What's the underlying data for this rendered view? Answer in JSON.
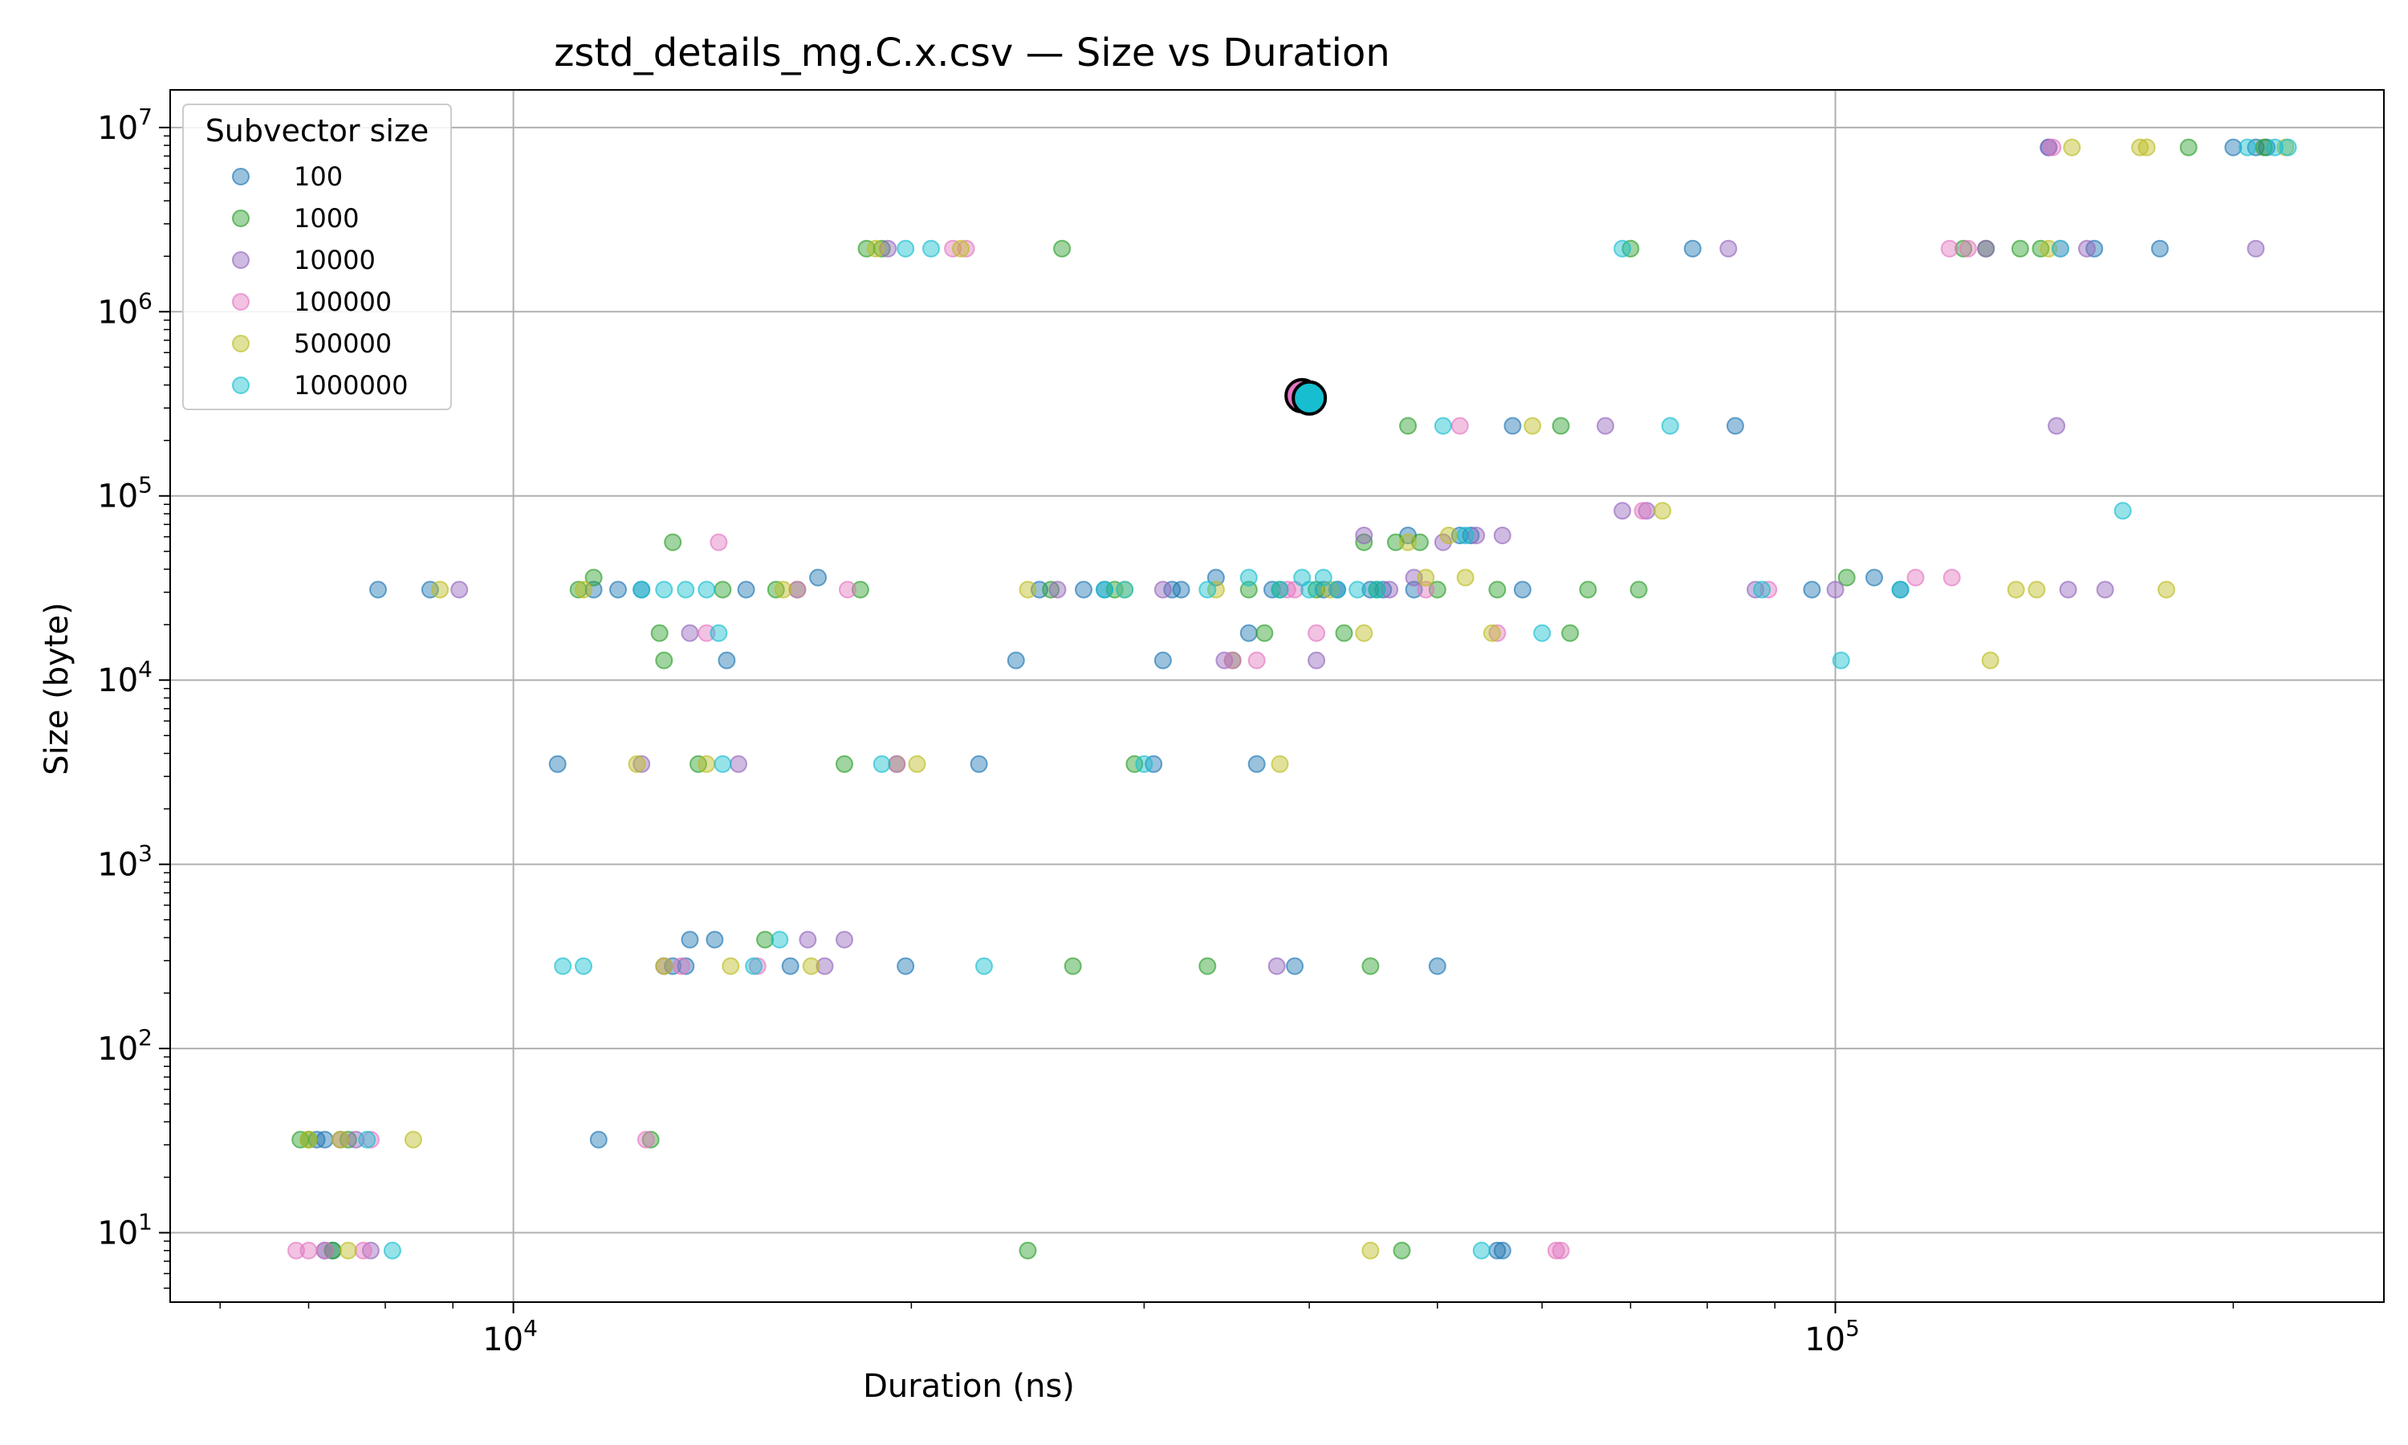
{
  "chart_data": {
    "type": "scatter",
    "title": "zstd_details_mg.C.x.csv — Size vs Duration",
    "xlabel": "Duration (ns)",
    "ylabel": "Size (byte)",
    "xscale": "log",
    "yscale": "log",
    "xlim": [
      5500,
      260000
    ],
    "ylim": [
      4.2,
      16000000
    ],
    "grid": true,
    "x_ticks": [
      {
        "value": 10000,
        "base": "10",
        "exp": "4"
      },
      {
        "value": 100000,
        "base": "10",
        "exp": "5"
      }
    ],
    "y_ticks": [
      {
        "value": 10,
        "base": "10",
        "exp": "1"
      },
      {
        "value": 100,
        "base": "10",
        "exp": "2"
      },
      {
        "value": 1000,
        "base": "10",
        "exp": "3"
      },
      {
        "value": 10000,
        "base": "10",
        "exp": "4"
      },
      {
        "value": 100000,
        "base": "10",
        "exp": "5"
      },
      {
        "value": 1000000,
        "base": "10",
        "exp": "6"
      },
      {
        "value": 10000000,
        "base": "10",
        "exp": "7"
      }
    ],
    "legend": {
      "title": "Subvector size",
      "location": "upper-left",
      "entries": [
        {
          "label": "100",
          "color": "#1f77b4"
        },
        {
          "label": "1000",
          "color": "#2ca02c"
        },
        {
          "label": "10000",
          "color": "#9467bd"
        },
        {
          "label": "100000",
          "color": "#e377c2"
        },
        {
          "label": "500000",
          "color": "#bcbd22"
        },
        {
          "label": "1000000",
          "color": "#17becf"
        }
      ]
    },
    "highlight_points": [
      {
        "x": 39500,
        "y": 350000,
        "color": "#e377c2"
      },
      {
        "x": 40000,
        "y": 340000,
        "color": "#17becf"
      }
    ],
    "series": [
      {
        "name": "100",
        "color": "#1f77b4",
        "points": [
          [
            7900,
            31000
          ],
          [
            8650,
            31000
          ],
          [
            10800,
            3500
          ],
          [
            11500,
            31000
          ],
          [
            12000,
            31000
          ],
          [
            12500,
            31000
          ],
          [
            7200,
            8
          ],
          [
            7300,
            8
          ],
          [
            7100,
            32
          ],
          [
            7200,
            32
          ],
          [
            11600,
            32
          ],
          [
            13200,
            280
          ],
          [
            13500,
            280
          ],
          [
            13600,
            390
          ],
          [
            14200,
            390
          ],
          [
            14500,
            12800
          ],
          [
            15000,
            31000
          ],
          [
            17000,
            36000
          ],
          [
            16200,
            280
          ],
          [
            19800,
            280
          ],
          [
            22500,
            3500
          ],
          [
            24000,
            12800
          ],
          [
            25000,
            31000
          ],
          [
            27000,
            31000
          ],
          [
            28000,
            31000
          ],
          [
            30500,
            3500
          ],
          [
            31000,
            12800
          ],
          [
            31500,
            31000
          ],
          [
            36000,
            18000
          ],
          [
            36500,
            3500
          ],
          [
            37500,
            31000
          ],
          [
            39000,
            280
          ],
          [
            42000,
            31000
          ],
          [
            45500,
            31000
          ],
          [
            48000,
            31000
          ],
          [
            50000,
            280
          ],
          [
            53000,
            61000
          ],
          [
            55500,
            8
          ],
          [
            56000,
            8
          ],
          [
            57000,
            240000
          ],
          [
            58000,
            31000
          ],
          [
            78000,
            2200000
          ],
          [
            84000,
            240000
          ],
          [
            96000,
            31000
          ],
          [
            107000,
            36000
          ],
          [
            112000,
            31000
          ],
          [
            145000,
            7800000
          ],
          [
            157000,
            2200000
          ],
          [
            176000,
            2200000
          ],
          [
            200000,
            7800000
          ],
          [
            208000,
            7800000
          ],
          [
            212000,
            7800000
          ],
          [
            32000,
            31000
          ],
          [
            34000,
            36000
          ],
          [
            44500,
            31000
          ],
          [
            47500,
            61000
          ],
          [
            52000,
            61000
          ],
          [
            41000,
            31000
          ]
        ]
      },
      {
        "name": "1000",
        "color": "#2ca02c",
        "points": [
          [
            6900,
            32
          ],
          [
            7000,
            32
          ],
          [
            7300,
            8
          ],
          [
            7500,
            32
          ],
          [
            11200,
            31000
          ],
          [
            11500,
            36000
          ],
          [
            12700,
            32
          ],
          [
            12900,
            18000
          ],
          [
            13000,
            12800
          ],
          [
            13200,
            56000
          ],
          [
            13800,
            3500
          ],
          [
            14400,
            31000
          ],
          [
            15500,
            390
          ],
          [
            15800,
            31000
          ],
          [
            16400,
            31000
          ],
          [
            17800,
            3500
          ],
          [
            18300,
            31000
          ],
          [
            18500,
            2200000
          ],
          [
            19000,
            2200000
          ],
          [
            19500,
            3500
          ],
          [
            24500,
            8
          ],
          [
            25500,
            31000
          ],
          [
            26000,
            2200000
          ],
          [
            26500,
            280
          ],
          [
            28500,
            31000
          ],
          [
            29500,
            3500
          ],
          [
            33500,
            280
          ],
          [
            35000,
            12800
          ],
          [
            37000,
            18000
          ],
          [
            38000,
            31000
          ],
          [
            40500,
            31000
          ],
          [
            42500,
            18000
          ],
          [
            44500,
            280
          ],
          [
            45000,
            31000
          ],
          [
            47000,
            8
          ],
          [
            47500,
            240000
          ],
          [
            48500,
            56000
          ],
          [
            50000,
            31000
          ],
          [
            55500,
            31000
          ],
          [
            62000,
            240000
          ],
          [
            63000,
            18000
          ],
          [
            65000,
            31000
          ],
          [
            70000,
            2200000
          ],
          [
            71000,
            31000
          ],
          [
            102000,
            36000
          ],
          [
            125000,
            2200000
          ],
          [
            130000,
            2200000
          ],
          [
            138000,
            2200000
          ],
          [
            143000,
            2200000
          ],
          [
            185000,
            7800000
          ],
          [
            211000,
            7800000
          ],
          [
            44000,
            56000
          ],
          [
            46500,
            56000
          ],
          [
            36000,
            31000
          ]
        ]
      },
      {
        "name": "10000",
        "color": "#9467bd",
        "points": [
          [
            7400,
            32
          ],
          [
            7600,
            32
          ],
          [
            7800,
            8
          ],
          [
            9100,
            31000
          ],
          [
            12500,
            3500
          ],
          [
            13000,
            280
          ],
          [
            13600,
            18000
          ],
          [
            14800,
            3500
          ],
          [
            16700,
            390
          ],
          [
            17200,
            280
          ],
          [
            17800,
            390
          ],
          [
            19200,
            2200000
          ],
          [
            25800,
            31000
          ],
          [
            31000,
            31000
          ],
          [
            34500,
            12800
          ],
          [
            37800,
            280
          ],
          [
            40500,
            12800
          ],
          [
            48000,
            36000
          ],
          [
            50500,
            56000
          ],
          [
            53500,
            61000
          ],
          [
            56000,
            61000
          ],
          [
            67000,
            240000
          ],
          [
            69000,
            83000
          ],
          [
            72000,
            83000
          ],
          [
            83000,
            2200000
          ],
          [
            87000,
            31000
          ],
          [
            100000,
            31000
          ],
          [
            130000,
            2200000
          ],
          [
            145000,
            7800000
          ],
          [
            147000,
            240000
          ],
          [
            150000,
            31000
          ],
          [
            155000,
            2200000
          ],
          [
            160000,
            31000
          ],
          [
            208000,
            2200000
          ],
          [
            42000,
            31000
          ],
          [
            46000,
            31000
          ],
          [
            44000,
            61000
          ]
        ]
      },
      {
        "name": "100000",
        "color": "#e377c2",
        "points": [
          [
            6850,
            8
          ],
          [
            7000,
            8
          ],
          [
            7200,
            8
          ],
          [
            7700,
            8
          ],
          [
            7800,
            32
          ],
          [
            12600,
            32
          ],
          [
            13400,
            280
          ],
          [
            14000,
            18000
          ],
          [
            14300,
            56000
          ],
          [
            15300,
            280
          ],
          [
            16400,
            31000
          ],
          [
            17900,
            31000
          ],
          [
            19500,
            3500
          ],
          [
            21500,
            2200000
          ],
          [
            22000,
            2200000
          ],
          [
            35000,
            12800
          ],
          [
            36500,
            12800
          ],
          [
            39000,
            31000
          ],
          [
            40500,
            18000
          ],
          [
            49000,
            31000
          ],
          [
            52000,
            240000
          ],
          [
            55500,
            18000
          ],
          [
            61500,
            8
          ],
          [
            62000,
            8
          ],
          [
            71500,
            83000
          ],
          [
            89000,
            31000
          ],
          [
            115000,
            36000
          ],
          [
            122000,
            2200000
          ],
          [
            126000,
            2200000
          ],
          [
            146000,
            7800000
          ],
          [
            148000,
            2200000
          ],
          [
            122500,
            36000
          ],
          [
            38500,
            31000
          ]
        ]
      },
      {
        "name": "500000",
        "color": "#bcbd22",
        "points": [
          [
            7000,
            32
          ],
          [
            7500,
            8
          ],
          [
            7400,
            32
          ],
          [
            8400,
            32
          ],
          [
            8800,
            31000
          ],
          [
            11300,
            31000
          ],
          [
            12400,
            3500
          ],
          [
            13000,
            280
          ],
          [
            14000,
            3500
          ],
          [
            14600,
            280
          ],
          [
            16000,
            31000
          ],
          [
            16800,
            280
          ],
          [
            18800,
            2200000
          ],
          [
            20200,
            3500
          ],
          [
            21800,
            2200000
          ],
          [
            24500,
            31000
          ],
          [
            29000,
            31000
          ],
          [
            34000,
            31000
          ],
          [
            38000,
            3500
          ],
          [
            41500,
            31000
          ],
          [
            44000,
            18000
          ],
          [
            44500,
            8
          ],
          [
            47500,
            56000
          ],
          [
            51000,
            61000
          ],
          [
            52500,
            36000
          ],
          [
            55000,
            18000
          ],
          [
            59000,
            240000
          ],
          [
            74000,
            83000
          ],
          [
            131000,
            12800
          ],
          [
            137000,
            31000
          ],
          [
            142000,
            31000
          ],
          [
            145000,
            2200000
          ],
          [
            151000,
            7800000
          ],
          [
            170000,
            7800000
          ],
          [
            172000,
            7800000
          ],
          [
            178000,
            31000
          ],
          [
            219000,
            7800000
          ],
          [
            49000,
            36000
          ]
        ]
      },
      {
        "name": "1000000",
        "color": "#17becf",
        "points": [
          [
            7750,
            32
          ],
          [
            8100,
            8
          ],
          [
            10900,
            280
          ],
          [
            11300,
            280
          ],
          [
            12500,
            31000
          ],
          [
            13000,
            31000
          ],
          [
            13500,
            31000
          ],
          [
            14000,
            31000
          ],
          [
            14400,
            3500
          ],
          [
            14300,
            18000
          ],
          [
            15200,
            280
          ],
          [
            15900,
            390
          ],
          [
            19000,
            3500
          ],
          [
            19800,
            2200000
          ],
          [
            20700,
            2200000
          ],
          [
            22700,
            280
          ],
          [
            28000,
            31000
          ],
          [
            29000,
            31000
          ],
          [
            30000,
            3500
          ],
          [
            33500,
            31000
          ],
          [
            36000,
            36000
          ],
          [
            38000,
            31000
          ],
          [
            40000,
            31000
          ],
          [
            42000,
            31000
          ],
          [
            43500,
            31000
          ],
          [
            45000,
            31000
          ],
          [
            50500,
            240000
          ],
          [
            52500,
            61000
          ],
          [
            54000,
            8
          ],
          [
            60000,
            18000
          ],
          [
            69000,
            2200000
          ],
          [
            75000,
            240000
          ],
          [
            88000,
            31000
          ],
          [
            101000,
            12800
          ],
          [
            112000,
            31000
          ],
          [
            148000,
            2200000
          ],
          [
            165000,
            83000
          ],
          [
            205000,
            7800000
          ],
          [
            215000,
            7800000
          ],
          [
            220000,
            7800000
          ],
          [
            39500,
            36000
          ],
          [
            41000,
            36000
          ]
        ]
      }
    ]
  }
}
